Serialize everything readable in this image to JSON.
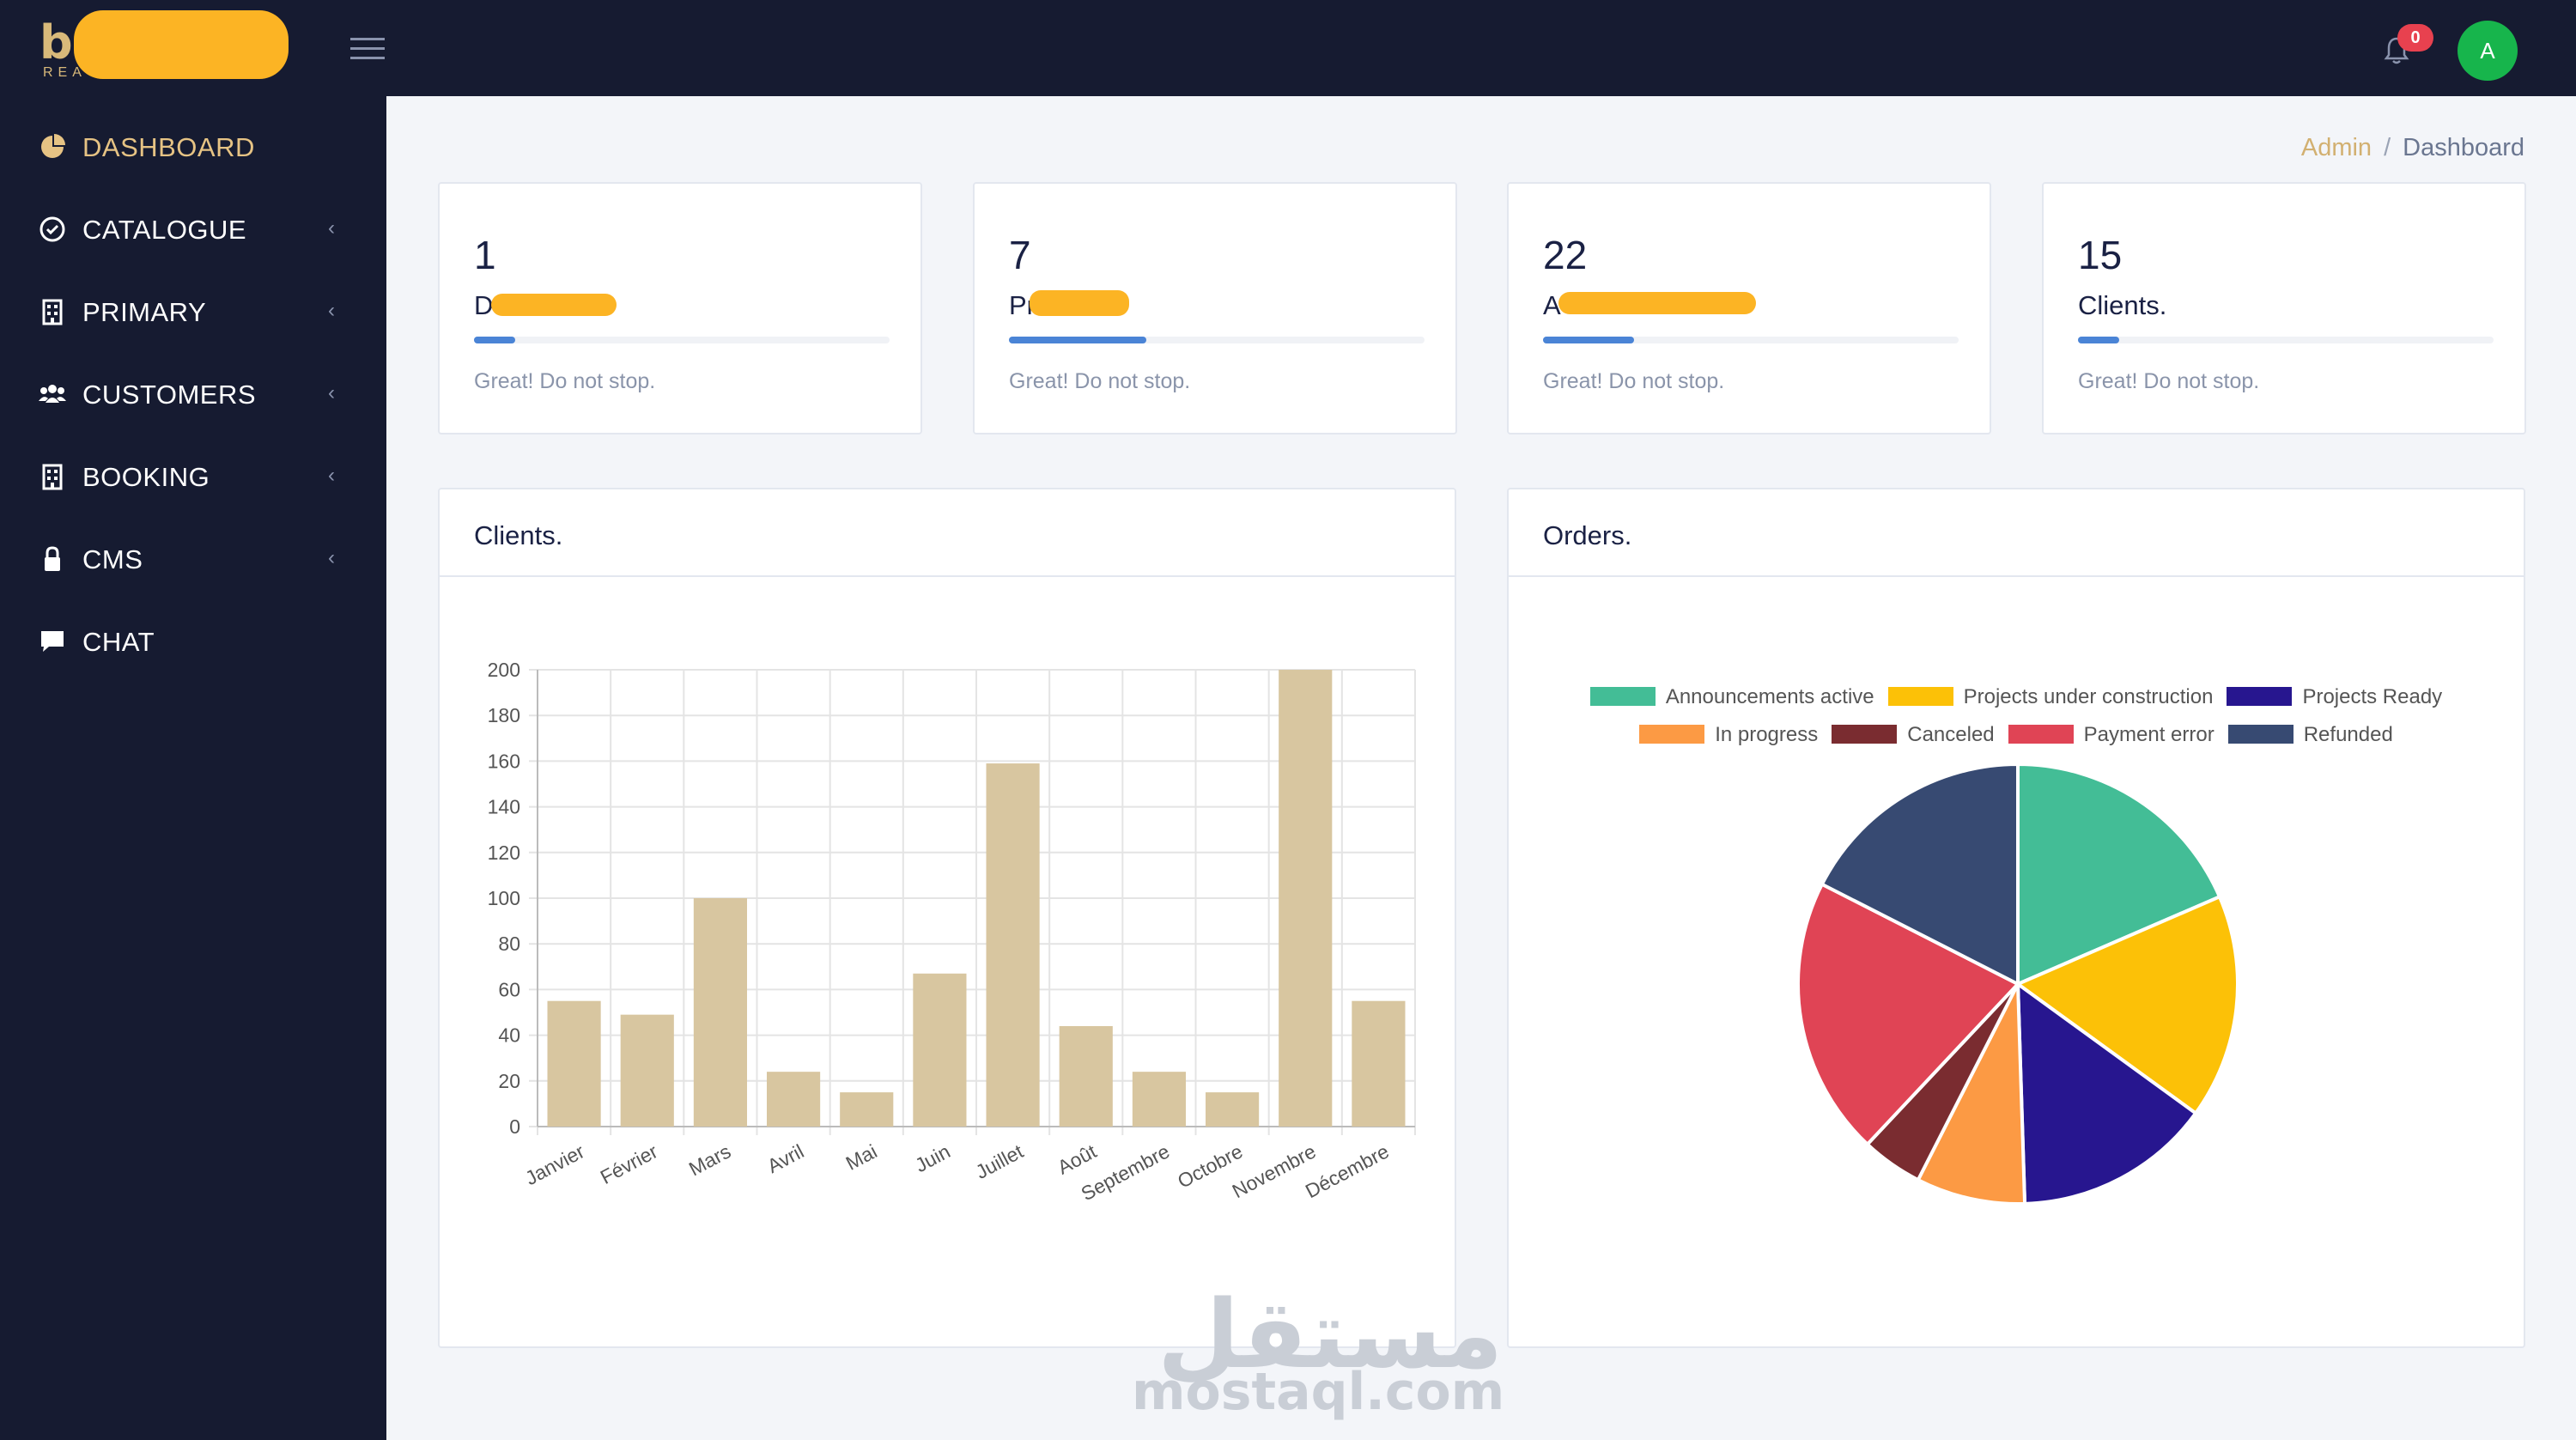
{
  "topbar": {
    "logo_letter": "b",
    "logo_sub": "REA",
    "notifications_count": "0",
    "avatar_initial": "A"
  },
  "sidebar": {
    "items": [
      {
        "label": "DASHBOARD",
        "icon": "pie-icon",
        "active": true,
        "chevron": false
      },
      {
        "label": "CATALOGUE",
        "icon": "check-circle-icon",
        "active": false,
        "chevron": true
      },
      {
        "label": "PRIMARY",
        "icon": "building-icon",
        "active": false,
        "chevron": true
      },
      {
        "label": "CUSTOMERS",
        "icon": "users-icon",
        "active": false,
        "chevron": true
      },
      {
        "label": "BOOKING",
        "icon": "building-icon",
        "active": false,
        "chevron": true
      },
      {
        "label": "CMS",
        "icon": "lock-icon",
        "active": false,
        "chevron": true
      },
      {
        "label": "CHAT",
        "icon": "chat-icon",
        "active": false,
        "chevron": false
      }
    ],
    "chevron_glyph": "‹"
  },
  "breadcrumb": {
    "root": "Admin",
    "separator": "/",
    "current": "Dashboard"
  },
  "stats": [
    {
      "number": "1",
      "label": "D",
      "progress_percent": 10,
      "footer": "Great! Do not stop."
    },
    {
      "number": "7",
      "label": "Pr",
      "progress_percent": 33,
      "footer": "Great! Do not stop."
    },
    {
      "number": "22",
      "label": "A",
      "progress_percent": 22,
      "footer": "Great! Do not stop."
    },
    {
      "number": "15",
      "label": "Clients.",
      "progress_percent": 10,
      "footer": "Great! Do not stop."
    }
  ],
  "clients_chart": {
    "title": "Clients.",
    "chart_data": {
      "type": "bar",
      "categories": [
        "Janvier",
        "Février",
        "Mars",
        "Avril",
        "Mai",
        "Juin",
        "Juillet",
        "Août",
        "Septembre",
        "Octobre",
        "Novembre",
        "Décembre"
      ],
      "values": [
        55,
        49,
        100,
        24,
        15,
        67,
        159,
        44,
        24,
        15,
        200,
        55
      ],
      "ylim": [
        0,
        200
      ],
      "yticks": [
        0,
        20,
        40,
        60,
        80,
        100,
        120,
        140,
        160,
        180,
        200
      ],
      "grid": true,
      "color": "#d8c6a0"
    }
  },
  "orders_chart": {
    "title": "Orders.",
    "chart_data": {
      "type": "pie",
      "labels": [
        "Announcements active",
        "Projects under construction",
        "Projects Ready",
        "In progress",
        "Canceled",
        "Payment error",
        "Refunded"
      ],
      "values": [
        18.5,
        16.5,
        14.5,
        8,
        4.5,
        20.5,
        17.5
      ],
      "colors": [
        "#43bd96",
        "#fcc107",
        "#27168f",
        "#fc9a44",
        "#7a2c30",
        "#e04455",
        "#374a72"
      ],
      "legend_position": "top"
    }
  },
  "watermark": {
    "arabic": "مستقل",
    "latin": "mostaql.com"
  }
}
